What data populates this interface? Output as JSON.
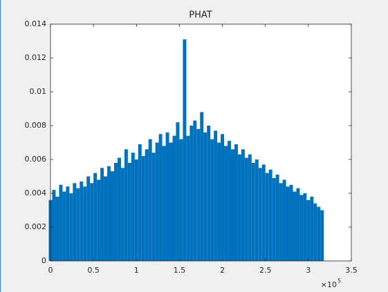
{
  "chart_data": {
    "type": "stem",
    "title": "PHAT",
    "color": "#0072bd",
    "x": [
      0,
      4000,
      8000,
      12000,
      16000,
      20000,
      24000,
      28000,
      32000,
      36000,
      40000,
      44000,
      48000,
      52000,
      56000,
      60000,
      64000,
      68000,
      72000,
      76000,
      80000,
      84000,
      88000,
      92000,
      96000,
      100000,
      104000,
      108000,
      112000,
      116000,
      120000,
      124000,
      128000,
      132000,
      136000,
      140000,
      144000,
      148000,
      152000,
      156000,
      160000,
      164000,
      168000,
      172000,
      176000,
      180000,
      184000,
      188000,
      192000,
      196000,
      200000,
      204000,
      208000,
      212000,
      216000,
      220000,
      224000,
      228000,
      232000,
      236000,
      240000,
      244000,
      248000,
      252000,
      256000,
      260000,
      264000,
      268000,
      272000,
      276000,
      280000,
      284000,
      288000,
      292000,
      296000,
      300000,
      304000,
      308000,
      312000,
      316000
    ],
    "values": [
      0.0036,
      0.0042,
      0.0038,
      0.0045,
      0.0041,
      0.0044,
      0.004,
      0.0046,
      0.0043,
      0.0047,
      0.0044,
      0.005,
      0.0046,
      0.0052,
      0.0048,
      0.0055,
      0.005,
      0.0056,
      0.0053,
      0.0058,
      0.0061,
      0.0055,
      0.0066,
      0.0058,
      0.0064,
      0.006,
      0.0069,
      0.0062,
      0.0066,
      0.0072,
      0.0064,
      0.007,
      0.0075,
      0.0068,
      0.0076,
      0.007,
      0.0074,
      0.0082,
      0.0072,
      0.0131,
      0.0074,
      0.008,
      0.0083,
      0.0078,
      0.0088,
      0.0076,
      0.008,
      0.0072,
      0.0077,
      0.007,
      0.0075,
      0.0068,
      0.0071,
      0.0066,
      0.0069,
      0.0063,
      0.0066,
      0.0061,
      0.0063,
      0.0058,
      0.006,
      0.0055,
      0.0057,
      0.0052,
      0.0054,
      0.0049,
      0.0051,
      0.0046,
      0.0048,
      0.0044,
      0.0045,
      0.0041,
      0.0043,
      0.0039,
      0.004,
      0.0036,
      0.0038,
      0.0034,
      0.0032,
      0.003
    ],
    "xlim": [
      0,
      350000
    ],
    "xticks": [
      0,
      {
        "value": 50000,
        "label": "0.5"
      },
      {
        "value": 100000,
        "label": "1"
      },
      {
        "value": 150000,
        "label": "1.5"
      },
      {
        "value": 200000,
        "label": "2"
      },
      {
        "value": 250000,
        "label": "2.5"
      },
      {
        "value": 300000,
        "label": "3"
      },
      {
        "value": 350000,
        "label": "3.5"
      }
    ],
    "x_exponent_base": "×10",
    "x_exponent": 5,
    "ylim": [
      0,
      0.014
    ],
    "yticks": [
      0,
      0.002,
      0.004,
      0.006,
      0.008,
      0.01,
      0.012,
      0.014
    ]
  }
}
